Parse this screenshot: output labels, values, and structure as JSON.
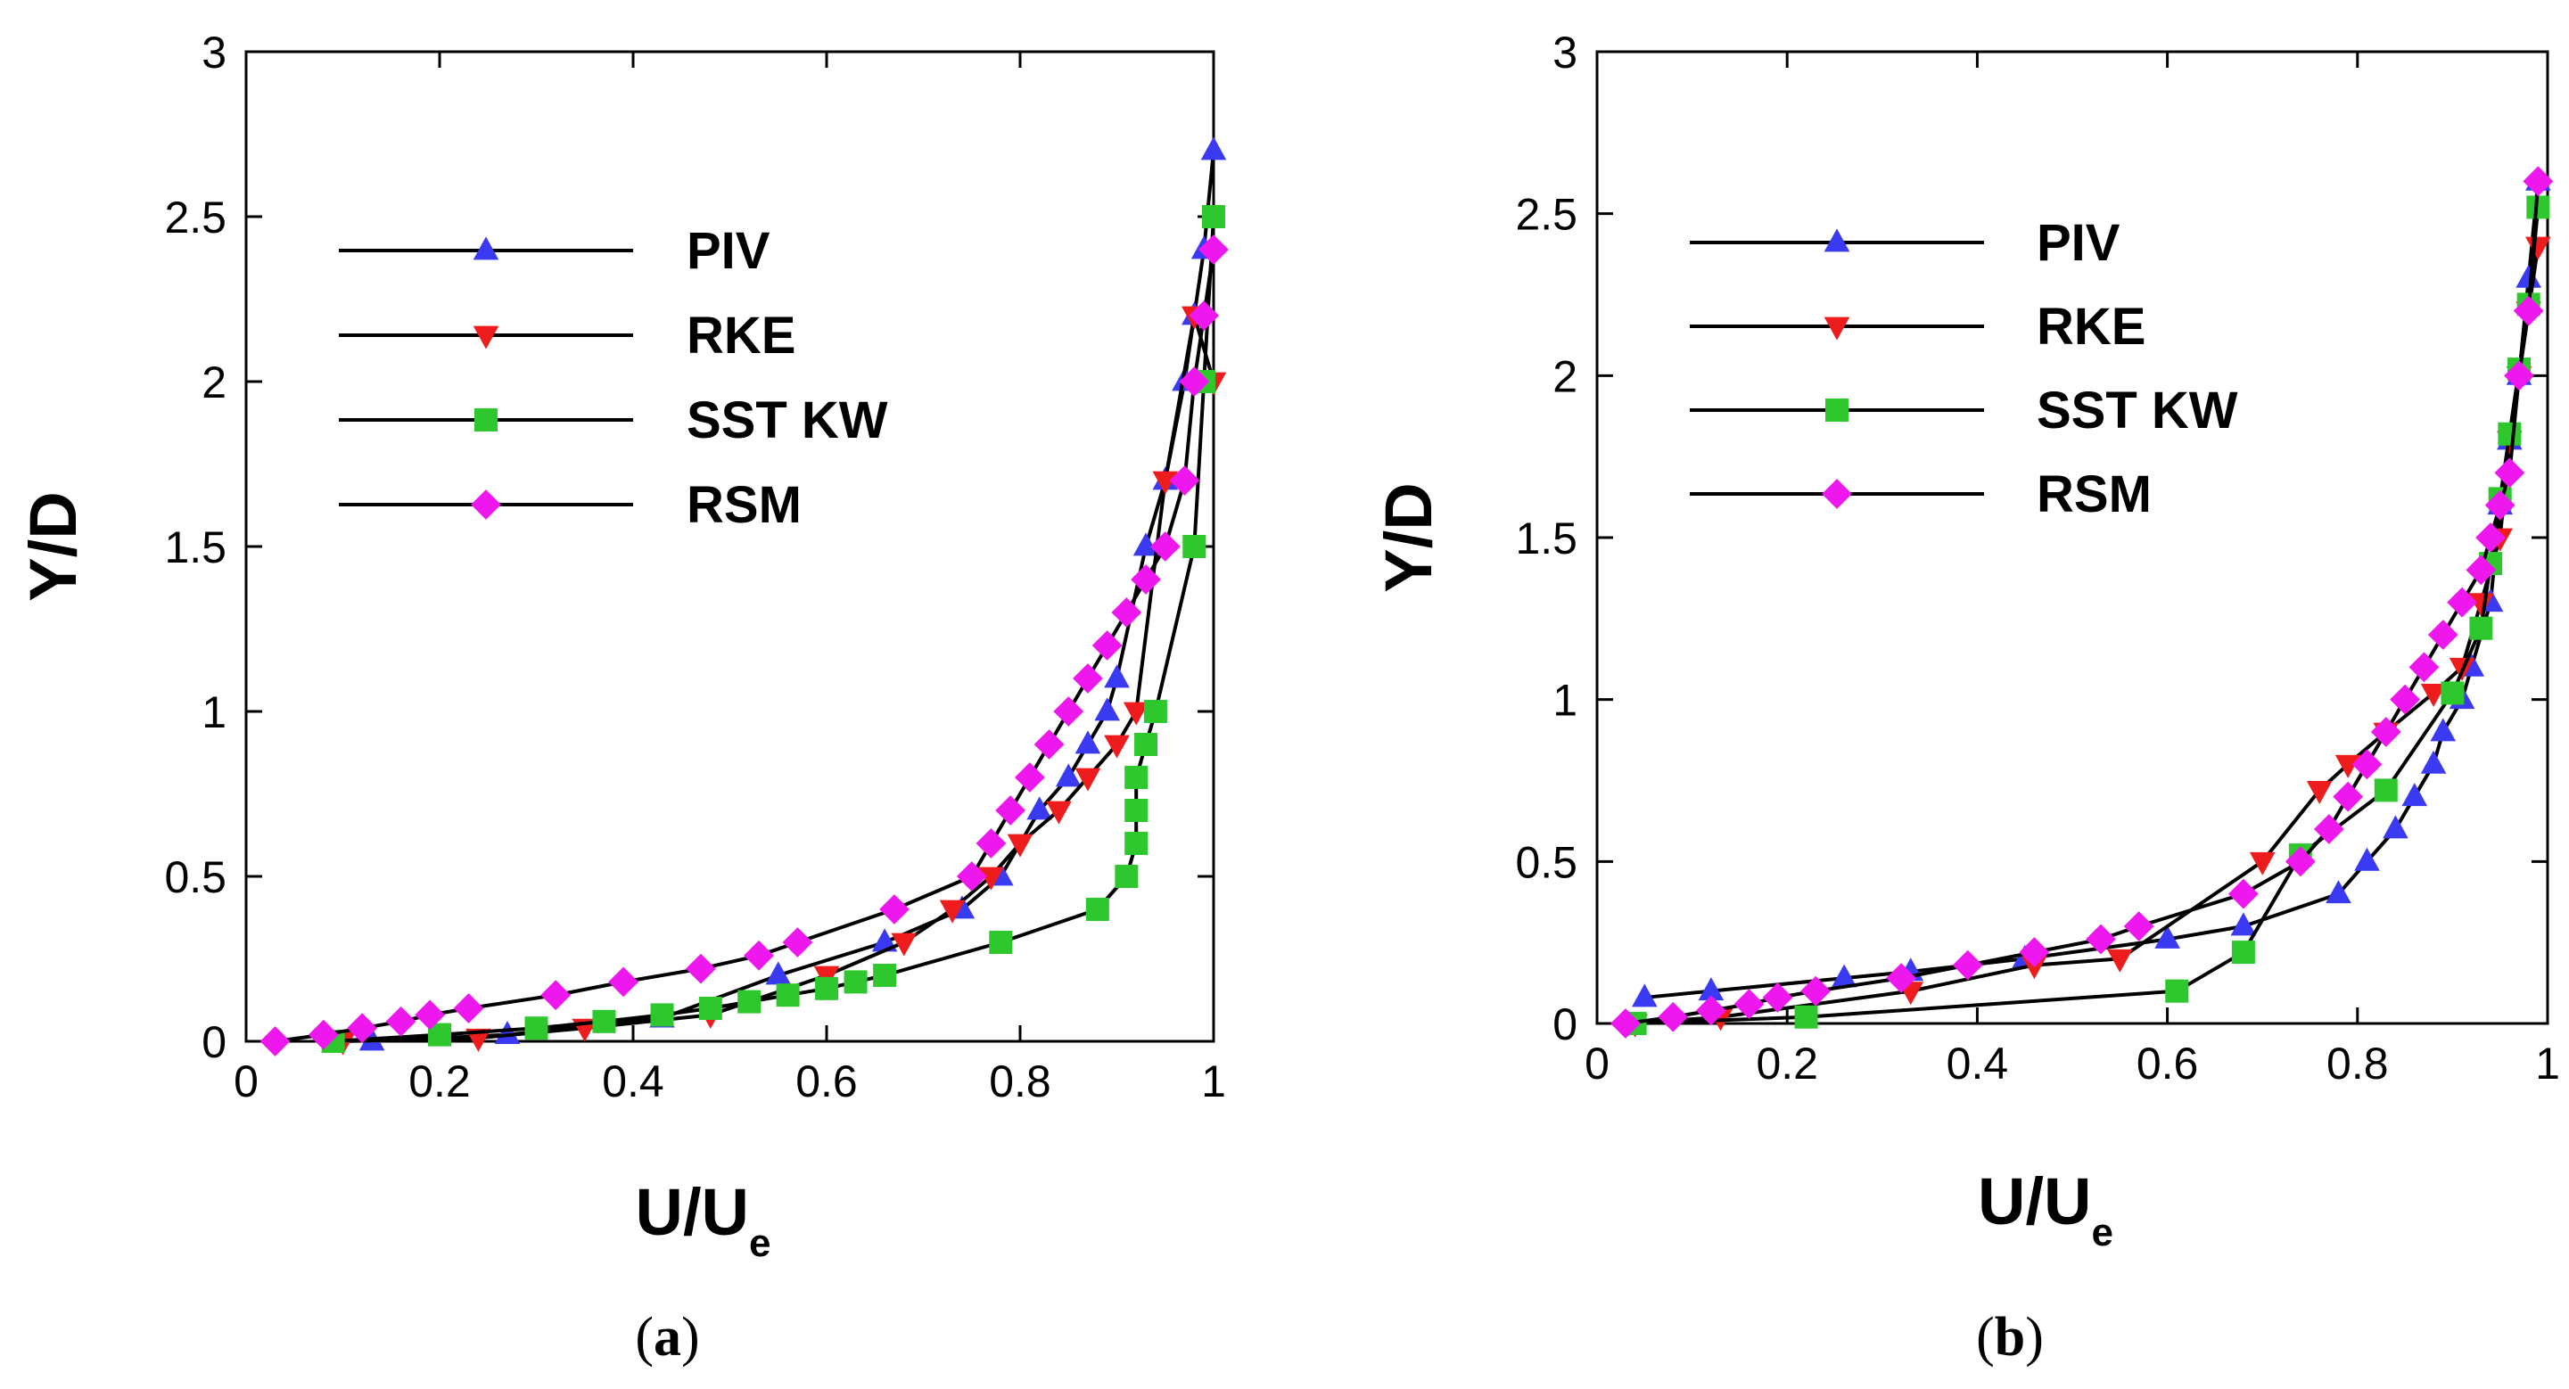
{
  "chart_data": [
    {
      "type": "line",
      "caption_letter": "a",
      "xlabel": {
        "main": "U/U",
        "sub": "e"
      },
      "ylabel": "Y/D",
      "xlim": [
        0,
        1
      ],
      "ylim": [
        0,
        3
      ],
      "xticks": [
        0,
        0.2,
        0.4,
        0.6,
        0.8,
        1
      ],
      "xtick_labels": [
        "0",
        "0.2",
        "0.4",
        "0.6",
        "0.8",
        "1"
      ],
      "yticks": [
        0,
        0.5,
        1,
        1.5,
        2,
        2.5,
        3
      ],
      "ytick_labels": [
        "0",
        "0.5",
        "1",
        "1.5",
        "2",
        "2.5",
        "3"
      ],
      "legend_position": "upper-left",
      "series": [
        {
          "name": "PIV",
          "color": "#3a3af2",
          "marker": "triangle-up",
          "x": [
            0.13,
            0.27,
            0.43,
            0.55,
            0.66,
            0.74,
            0.78,
            0.82,
            0.85,
            0.87,
            0.89,
            0.9,
            0.93,
            0.95,
            0.97,
            0.98,
            0.99,
            1.0
          ],
          "y": [
            0.0,
            0.02,
            0.07,
            0.2,
            0.3,
            0.4,
            0.5,
            0.7,
            0.8,
            0.9,
            1.0,
            1.1,
            1.5,
            1.7,
            2.0,
            2.2,
            2.4,
            2.7
          ]
        },
        {
          "name": "RKE",
          "color": "#ee1c1c",
          "marker": "triangle-down",
          "x": [
            0.1,
            0.24,
            0.35,
            0.48,
            0.6,
            0.68,
            0.73,
            0.77,
            0.8,
            0.84,
            0.87,
            0.9,
            0.92,
            0.95,
            0.98,
            1.0
          ],
          "y": [
            0.0,
            0.01,
            0.04,
            0.08,
            0.2,
            0.3,
            0.4,
            0.5,
            0.6,
            0.7,
            0.8,
            0.9,
            1.0,
            1.7,
            2.2,
            2.0
          ]
        },
        {
          "name": "SST KW",
          "color": "#2ec82e",
          "marker": "square",
          "x": [
            0.09,
            0.2,
            0.3,
            0.37,
            0.43,
            0.48,
            0.52,
            0.56,
            0.6,
            0.63,
            0.66,
            0.78,
            0.88,
            0.91,
            0.92,
            0.92,
            0.92,
            0.93,
            0.94,
            0.98,
            0.99,
            1.0
          ],
          "y": [
            0.0,
            0.02,
            0.04,
            0.06,
            0.08,
            0.1,
            0.12,
            0.14,
            0.16,
            0.18,
            0.2,
            0.3,
            0.4,
            0.5,
            0.6,
            0.7,
            0.8,
            0.9,
            1.0,
            1.5,
            2.0,
            2.5
          ]
        },
        {
          "name": "RSM",
          "color": "#ee18ee",
          "marker": "diamond",
          "x": [
            0.03,
            0.08,
            0.12,
            0.16,
            0.19,
            0.23,
            0.32,
            0.39,
            0.47,
            0.53,
            0.57,
            0.67,
            0.75,
            0.77,
            0.79,
            0.81,
            0.83,
            0.85,
            0.87,
            0.89,
            0.91,
            0.93,
            0.95,
            0.97,
            0.98,
            0.99,
            1.0
          ],
          "y": [
            0.0,
            0.02,
            0.04,
            0.06,
            0.08,
            0.1,
            0.14,
            0.18,
            0.22,
            0.26,
            0.3,
            0.4,
            0.5,
            0.6,
            0.7,
            0.8,
            0.9,
            1.0,
            1.1,
            1.2,
            1.3,
            1.4,
            1.5,
            1.7,
            2.0,
            2.2,
            2.4
          ]
        }
      ]
    },
    {
      "type": "line",
      "caption_letter": "b",
      "xlabel": {
        "main": "U/U",
        "sub": "e"
      },
      "ylabel": "Y/D",
      "xlim": [
        0,
        1
      ],
      "ylim": [
        0,
        3
      ],
      "xticks": [
        0,
        0.2,
        0.4,
        0.6,
        0.8,
        1
      ],
      "xtick_labels": [
        "0",
        "0.2",
        "0.4",
        "0.6",
        "0.8",
        "1"
      ],
      "yticks": [
        0,
        0.5,
        1,
        1.5,
        2,
        2.5,
        3
      ],
      "ytick_labels": [
        "0",
        "0.5",
        "1",
        "1.5",
        "2",
        "2.5",
        "3"
      ],
      "legend_position": "upper-left",
      "series": [
        {
          "name": "PIV",
          "color": "#3a3af2",
          "marker": "triangle-up",
          "x": [
            0.05,
            0.12,
            0.26,
            0.33,
            0.45,
            0.6,
            0.68,
            0.78,
            0.81,
            0.84,
            0.86,
            0.88,
            0.89,
            0.91,
            0.92,
            0.94,
            0.95,
            0.96,
            0.97,
            0.98,
            0.99
          ],
          "y": [
            0.08,
            0.1,
            0.14,
            0.16,
            0.2,
            0.26,
            0.3,
            0.4,
            0.5,
            0.6,
            0.7,
            0.8,
            0.9,
            1.0,
            1.1,
            1.3,
            1.6,
            1.8,
            2.0,
            2.3,
            2.6
          ]
        },
        {
          "name": "RKE",
          "color": "#ee1c1c",
          "marker": "triangle-down",
          "x": [
            0.04,
            0.13,
            0.33,
            0.46,
            0.55,
            0.7,
            0.76,
            0.79,
            0.83,
            0.88,
            0.91,
            0.93,
            0.95,
            0.96,
            0.97,
            0.98,
            0.99
          ],
          "y": [
            0.0,
            0.02,
            0.1,
            0.18,
            0.2,
            0.5,
            0.72,
            0.8,
            0.9,
            1.02,
            1.1,
            1.3,
            1.5,
            1.8,
            2.0,
            2.2,
            2.4
          ]
        },
        {
          "name": "SST KW",
          "color": "#2ec82e",
          "marker": "square",
          "x": [
            0.04,
            0.22,
            0.61,
            0.68,
            0.74,
            0.83,
            0.9,
            0.93,
            0.94,
            0.95,
            0.96,
            0.97,
            0.98,
            0.99
          ],
          "y": [
            0.0,
            0.02,
            0.1,
            0.22,
            0.52,
            0.72,
            1.02,
            1.22,
            1.42,
            1.62,
            1.82,
            2.02,
            2.22,
            2.52
          ]
        },
        {
          "name": "RSM",
          "color": "#ee18ee",
          "marker": "diamond",
          "x": [
            0.03,
            0.08,
            0.12,
            0.16,
            0.19,
            0.23,
            0.32,
            0.39,
            0.46,
            0.53,
            0.57,
            0.68,
            0.74,
            0.77,
            0.79,
            0.81,
            0.83,
            0.85,
            0.87,
            0.89,
            0.91,
            0.93,
            0.94,
            0.95,
            0.96,
            0.97,
            0.98,
            0.99
          ],
          "y": [
            0.0,
            0.02,
            0.04,
            0.06,
            0.08,
            0.1,
            0.14,
            0.18,
            0.22,
            0.26,
            0.3,
            0.4,
            0.5,
            0.6,
            0.7,
            0.8,
            0.9,
            1.0,
            1.1,
            1.2,
            1.3,
            1.4,
            1.5,
            1.6,
            1.7,
            2.0,
            2.2,
            2.6
          ]
        }
      ]
    }
  ]
}
